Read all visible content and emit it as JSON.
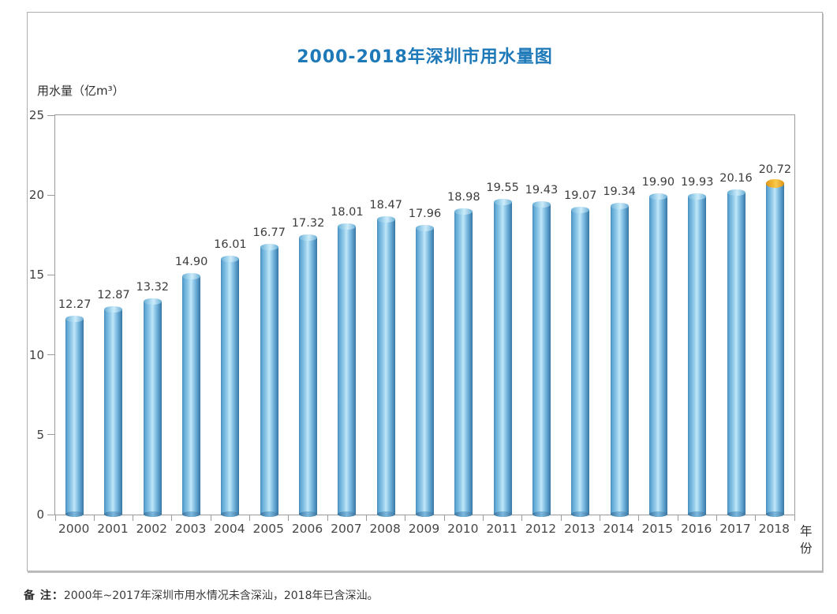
{
  "page": {
    "title": "2000-2018年深圳市用水量图",
    "y_axis_title": "用水量（亿m³）",
    "x_axis_title": "年份",
    "note_label": "备 注：",
    "note_text": "2000年~2017年深圳市用水情况未含深汕，2018年已含深汕。"
  },
  "colors": {
    "title_blue": "#1e79b9",
    "bar_edge_blue": "#4688b8",
    "bar_center_blue": "#c2e7f7",
    "cap_blue": "#b9e3f5",
    "cap_orange_2018": "#f2a72e",
    "axis_gray": "#9b9b9b",
    "value_text": "#3c3c3c"
  },
  "chart_data": {
    "type": "bar",
    "title": "2000-2018年深圳市用水量图",
    "xlabel": "年份",
    "ylabel": "用水量（亿m³）",
    "categories": [
      "2000",
      "2001",
      "2002",
      "2003",
      "2004",
      "2005",
      "2006",
      "2007",
      "2008",
      "2009",
      "2010",
      "2011",
      "2012",
      "2013",
      "2014",
      "2015",
      "2016",
      "2017",
      "2018"
    ],
    "values": [
      12.27,
      12.87,
      13.32,
      14.9,
      16.01,
      16.77,
      17.32,
      18.01,
      18.47,
      17.96,
      18.98,
      19.55,
      19.43,
      19.07,
      19.34,
      19.9,
      19.93,
      20.16,
      20.72
    ],
    "value_labels": [
      "12.27",
      "12.87",
      "13.32",
      "14.90",
      "16.01",
      "16.77",
      "17.32",
      "18.01",
      "18.47",
      "17.96",
      "18.98",
      "19.55",
      "19.43",
      "19.07",
      "19.34",
      "19.90",
      "19.93",
      "20.16",
      "20.72"
    ],
    "ylim": [
      0,
      25
    ],
    "yticks": [
      0,
      5,
      10,
      15,
      20,
      25
    ],
    "grid": false,
    "legend": false,
    "bar_style": "cylinder",
    "highlight": {
      "category": "2018",
      "cap_color": "orange"
    },
    "note": "备 注：2000年~2017年深圳市用水情况未含深汕，2018年已含深汕。"
  }
}
